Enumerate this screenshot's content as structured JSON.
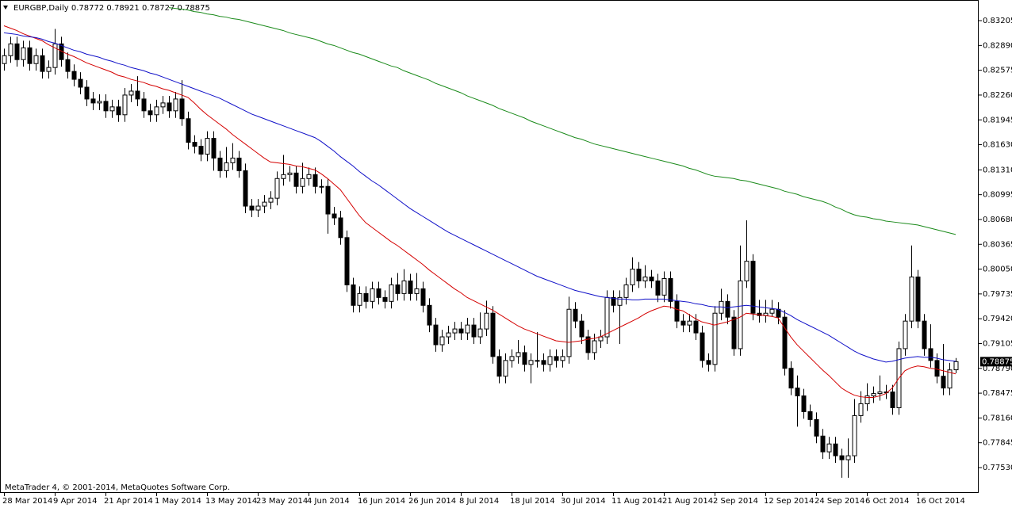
{
  "chart_data": {
    "type": "candlestick",
    "title": "EURGBP,Daily  0.78772 0.78921 0.78727 0.78875",
    "footer": "MetaTrader 4, © 2001-2014, MetaQuotes Software Corp.",
    "categories": [
      "28 Mar 2014",
      null,
      null,
      null,
      null,
      null,
      null,
      null,
      "9 Apr 2014",
      null,
      null,
      null,
      null,
      null,
      null,
      null,
      "21 Apr 2014",
      null,
      null,
      null,
      null,
      null,
      null,
      null,
      "1 May 2014",
      null,
      null,
      null,
      null,
      null,
      null,
      null,
      "13 May 2014",
      null,
      null,
      null,
      null,
      null,
      null,
      null,
      "23 May 2014",
      null,
      null,
      null,
      null,
      null,
      null,
      null,
      "4 Jun 2014",
      null,
      null,
      null,
      null,
      null,
      null,
      null,
      "16 Jun 2014",
      null,
      null,
      null,
      null,
      null,
      null,
      null,
      "26 Jun 2014",
      null,
      null,
      null,
      null,
      null,
      null,
      null,
      "8 Jul 2014",
      null,
      null,
      null,
      null,
      null,
      null,
      null,
      "18 Jul 2014",
      null,
      null,
      null,
      null,
      null,
      null,
      null,
      "30 Jul 2014",
      null,
      null,
      null,
      null,
      null,
      null,
      null,
      "11 Aug 2014",
      null,
      null,
      null,
      null,
      null,
      null,
      null,
      "21 Aug 2014",
      null,
      null,
      null,
      null,
      null,
      null,
      null,
      "2 Sep 2014",
      null,
      null,
      null,
      null,
      null,
      null,
      null,
      "12 Sep 2014",
      null,
      null,
      null,
      null,
      null,
      null,
      null,
      "24 Sep 2014",
      null,
      null,
      null,
      null,
      null,
      null,
      null,
      "6 Oct 2014",
      null,
      null,
      null,
      null,
      null,
      null,
      null,
      "16 Oct 2014",
      null,
      null,
      null,
      null,
      null,
      null
    ],
    "open": [
      0.8266,
      0.8276,
      0.8291,
      0.8271,
      0.8286,
      0.8266,
      0.8276,
      0.8256,
      0.8261,
      0.8291,
      0.8271,
      0.8256,
      0.8246,
      0.8236,
      0.8221,
      0.8216,
      0.8218,
      0.8206,
      0.8211,
      0.8201,
      0.8226,
      0.8231,
      0.8221,
      0.8206,
      0.8201,
      0.8211,
      0.8216,
      0.8206,
      0.8221,
      0.8196,
      0.8166,
      0.8161,
      0.8151,
      0.8171,
      0.8146,
      0.813,
      0.814,
      0.8146,
      0.813,
      0.8085,
      0.808,
      0.8085,
      0.809,
      0.8095,
      0.812,
      0.8125,
      0.8127,
      0.811,
      0.812,
      0.8125,
      0.811,
      0.811,
      0.8075,
      0.807,
      0.8045,
      0.7985,
      0.7959,
      0.7974,
      0.7964,
      0.798,
      0.7969,
      0.7964,
      0.7985,
      0.7974,
      0.799,
      0.7974,
      0.798,
      0.7959,
      0.7934,
      0.7909,
      0.7919,
      0.7924,
      0.7929,
      0.7924,
      0.7934,
      0.7919,
      0.7929,
      0.7949,
      0.7894,
      0.7869,
      0.7889,
      0.7894,
      0.7899,
      0.7884,
      0.7889,
      0.7889,
      0.7884,
      0.7894,
      0.7889,
      0.7894,
      0.7954,
      0.7939,
      0.7919,
      0.7899,
      0.7914,
      0.7919,
      0.7969,
      0.7959,
      0.7969,
      0.7985,
      0.8005,
      0.799,
      0.7995,
      0.799,
      0.7972,
      0.7993,
      0.7964,
      0.7939,
      0.7934,
      0.7939,
      0.7924,
      0.7889,
      0.7884,
      0.7949,
      0.7964,
      0.7944,
      0.7904,
      0.799,
      0.8015,
      0.7949,
      0.7946,
      0.7949,
      0.7954,
      0.7944,
      0.7879,
      0.7854,
      0.7844,
      0.7824,
      0.7814,
      0.7793,
      0.7773,
      0.7783,
      0.7768,
      0.7763,
      0.7768,
      0.7819,
      0.7834,
      0.7844,
      0.7847,
      0.7849,
      0.7849,
      0.7829,
      0.7904,
      0.7939,
      0.7995,
      0.7939,
      0.7904,
      0.7889,
      0.7869,
      0.7854,
      0.78772
    ],
    "high": [
      0.8285,
      0.83,
      0.83,
      0.8295,
      0.8295,
      0.8285,
      0.8285,
      0.827,
      0.831,
      0.83,
      0.828,
      0.8265,
      0.8255,
      0.8245,
      0.823,
      0.8227,
      0.8227,
      0.822,
      0.822,
      0.8235,
      0.824,
      0.825,
      0.823,
      0.8215,
      0.822,
      0.8225,
      0.8225,
      0.823,
      0.8245,
      0.8205,
      0.8175,
      0.817,
      0.818,
      0.818,
      0.8155,
      0.816,
      0.8165,
      0.8155,
      0.8139,
      0.8094,
      0.8094,
      0.8099,
      0.8104,
      0.8129,
      0.815,
      0.8136,
      0.8136,
      0.814,
      0.8134,
      0.8134,
      0.8119,
      0.8119,
      0.8084,
      0.8079,
      0.8054,
      0.7994,
      0.7983,
      0.7983,
      0.7989,
      0.7989,
      0.7978,
      0.7994,
      0.8,
      0.8005,
      0.7999,
      0.8,
      0.7989,
      0.7968,
      0.7943,
      0.7928,
      0.7933,
      0.7938,
      0.7938,
      0.7943,
      0.7943,
      0.795,
      0.7965,
      0.7958,
      0.7903,
      0.7898,
      0.7903,
      0.7915,
      0.7908,
      0.7898,
      0.7925,
      0.7898,
      0.7903,
      0.7903,
      0.7903,
      0.797,
      0.7963,
      0.7948,
      0.7928,
      0.7923,
      0.7928,
      0.7978,
      0.7978,
      0.7978,
      0.7994,
      0.802,
      0.8014,
      0.801,
      0.8004,
      0.7999,
      0.8002,
      0.8002,
      0.7973,
      0.7948,
      0.7948,
      0.7948,
      0.7933,
      0.7898,
      0.7958,
      0.798,
      0.7973,
      0.7953,
      0.8035,
      0.8067,
      0.8024,
      0.7966,
      0.7966,
      0.7966,
      0.7963,
      0.7953,
      0.7888,
      0.787,
      0.7853,
      0.7833,
      0.7823,
      0.7802,
      0.7792,
      0.7792,
      0.7777,
      0.779,
      0.784,
      0.785,
      0.786,
      0.7856,
      0.787,
      0.7858,
      0.7858,
      0.7913,
      0.7948,
      0.8035,
      0.8004,
      0.7948,
      0.7935,
      0.7898,
      0.791,
      0.7886,
      0.78921
    ],
    "low": [
      0.8257,
      0.8267,
      0.8262,
      0.8262,
      0.8257,
      0.8257,
      0.8247,
      0.8247,
      0.8252,
      0.8262,
      0.8247,
      0.8237,
      0.8227,
      0.8212,
      0.8207,
      0.8207,
      0.8197,
      0.8197,
      0.8192,
      0.8192,
      0.8217,
      0.8212,
      0.8197,
      0.8192,
      0.8192,
      0.8202,
      0.8197,
      0.8197,
      0.8187,
      0.8157,
      0.8152,
      0.8142,
      0.8142,
      0.813,
      0.8121,
      0.8121,
      0.8131,
      0.8121,
      0.8076,
      0.8071,
      0.8071,
      0.8076,
      0.8081,
      0.8086,
      0.8111,
      0.8116,
      0.8101,
      0.8101,
      0.8111,
      0.8101,
      0.8101,
      0.805,
      0.8061,
      0.8036,
      0.7976,
      0.795,
      0.795,
      0.7955,
      0.7955,
      0.796,
      0.7955,
      0.7955,
      0.7965,
      0.7965,
      0.7965,
      0.7965,
      0.795,
      0.7925,
      0.79,
      0.79,
      0.791,
      0.7915,
      0.7915,
      0.7915,
      0.791,
      0.791,
      0.792,
      0.7885,
      0.786,
      0.786,
      0.788,
      0.7885,
      0.7875,
      0.786,
      0.788,
      0.7875,
      0.7875,
      0.788,
      0.788,
      0.7885,
      0.793,
      0.791,
      0.789,
      0.789,
      0.7905,
      0.791,
      0.795,
      0.791,
      0.796,
      0.7976,
      0.7981,
      0.7981,
      0.7981,
      0.7963,
      0.7963,
      0.7955,
      0.793,
      0.7925,
      0.7925,
      0.7915,
      0.788,
      0.7875,
      0.7875,
      0.794,
      0.7935,
      0.7895,
      0.7895,
      0.7981,
      0.794,
      0.7937,
      0.7937,
      0.7945,
      0.7935,
      0.787,
      0.7845,
      0.7805,
      0.7815,
      0.7805,
      0.7784,
      0.7764,
      0.7764,
      0.7759,
      0.774,
      0.774,
      0.7759,
      0.781,
      0.7825,
      0.7835,
      0.7838,
      0.784,
      0.782,
      0.782,
      0.7895,
      0.793,
      0.793,
      0.7895,
      0.788,
      0.786,
      0.7845,
      0.7845,
      0.78727
    ],
    "close": [
      0.8276,
      0.8291,
      0.8271,
      0.8286,
      0.8266,
      0.8276,
      0.8256,
      0.8261,
      0.8291,
      0.8271,
      0.8256,
      0.8246,
      0.8236,
      0.8221,
      0.8216,
      0.8218,
      0.8206,
      0.8211,
      0.8201,
      0.8226,
      0.8231,
      0.8221,
      0.8206,
      0.8201,
      0.8211,
      0.8216,
      0.8206,
      0.8221,
      0.8196,
      0.8166,
      0.8161,
      0.8151,
      0.8171,
      0.8146,
      0.813,
      0.814,
      0.8146,
      0.813,
      0.8085,
      0.808,
      0.8085,
      0.809,
      0.8095,
      0.812,
      0.8125,
      0.8127,
      0.811,
      0.812,
      0.8125,
      0.811,
      0.811,
      0.8075,
      0.807,
      0.8045,
      0.7985,
      0.7959,
      0.7974,
      0.7964,
      0.798,
      0.7969,
      0.7964,
      0.7985,
      0.7974,
      0.799,
      0.7974,
      0.798,
      0.7959,
      0.7934,
      0.7909,
      0.7919,
      0.7924,
      0.7929,
      0.7924,
      0.7934,
      0.7919,
      0.7929,
      0.7949,
      0.7894,
      0.7869,
      0.7889,
      0.7894,
      0.7899,
      0.7884,
      0.7889,
      0.7889,
      0.7884,
      0.7894,
      0.7889,
      0.7894,
      0.7954,
      0.7939,
      0.7919,
      0.7899,
      0.7914,
      0.7919,
      0.7969,
      0.7959,
      0.7969,
      0.7985,
      0.8005,
      0.799,
      0.7995,
      0.799,
      0.7972,
      0.7993,
      0.7964,
      0.7939,
      0.7934,
      0.7939,
      0.7924,
      0.7889,
      0.7884,
      0.7949,
      0.7964,
      0.7944,
      0.7904,
      0.799,
      0.8015,
      0.7949,
      0.7946,
      0.7949,
      0.7954,
      0.7944,
      0.7879,
      0.7854,
      0.7844,
      0.7824,
      0.7814,
      0.7793,
      0.7773,
      0.7783,
      0.7768,
      0.7763,
      0.7768,
      0.7819,
      0.7834,
      0.7844,
      0.7847,
      0.7849,
      0.7849,
      0.7829,
      0.7904,
      0.7939,
      0.7995,
      0.7939,
      0.7904,
      0.7889,
      0.7869,
      0.7854,
      0.7877,
      0.78875
    ],
    "lines": [
      {
        "color": "#d40000",
        "values": [
          0.8314,
          0.8311,
          0.8308,
          0.8304,
          0.8301,
          0.8298,
          0.8295,
          0.829,
          0.8286,
          0.8282,
          0.8278,
          0.8275,
          0.8271,
          0.8267,
          0.8264,
          0.8261,
          0.8258,
          0.8255,
          0.8251,
          0.8249,
          0.8246,
          0.8244,
          0.8242,
          0.8239,
          0.8237,
          0.8234,
          0.8232,
          0.8229,
          0.8226,
          0.8223,
          0.8216,
          0.8208,
          0.8201,
          0.8195,
          0.8189,
          0.8183,
          0.8176,
          0.817,
          0.8164,
          0.8158,
          0.8152,
          0.8146,
          0.8141,
          0.814,
          0.8139,
          0.8138,
          0.8136,
          0.8135,
          0.8133,
          0.8131,
          0.8126,
          0.812,
          0.8113,
          0.8106,
          0.8095,
          0.8084,
          0.8073,
          0.8064,
          0.8058,
          0.8052,
          0.8046,
          0.804,
          0.8035,
          0.8029,
          0.8023,
          0.8017,
          0.8011,
          0.8004,
          0.7998,
          0.7992,
          0.7986,
          0.798,
          0.7975,
          0.7969,
          0.7965,
          0.7961,
          0.7957,
          0.7953,
          0.7948,
          0.7943,
          0.7938,
          0.7933,
          0.7929,
          0.7926,
          0.7923,
          0.792,
          0.7917,
          0.7914,
          0.7913,
          0.7912,
          0.7913,
          0.7914,
          0.7916,
          0.7917,
          0.7919,
          0.7923,
          0.7927,
          0.7931,
          0.7935,
          0.7939,
          0.7943,
          0.7948,
          0.7952,
          0.7955,
          0.7958,
          0.7957,
          0.7954,
          0.7952,
          0.7947,
          0.7942,
          0.7938,
          0.7936,
          0.7934,
          0.7936,
          0.7938,
          0.7941,
          0.7944,
          0.7949,
          0.7948,
          0.7947,
          0.7946,
          0.7945,
          0.7943,
          0.7931,
          0.7919,
          0.7909,
          0.7901,
          0.7893,
          0.7885,
          0.7877,
          0.787,
          0.7862,
          0.7854,
          0.7849,
          0.7845,
          0.7843,
          0.7842,
          0.7842,
          0.7844,
          0.7847,
          0.7854,
          0.7866,
          0.7876,
          0.788,
          0.7882,
          0.7881,
          0.7879,
          0.7878,
          0.7876,
          0.7874,
          0.7872
        ]
      },
      {
        "color": "#1010c8",
        "values": [
          0.8305,
          0.8304,
          0.8303,
          0.8301,
          0.83,
          0.8299,
          0.8297,
          0.8294,
          0.8292,
          0.8289,
          0.8286,
          0.8283,
          0.8281,
          0.8278,
          0.8276,
          0.8274,
          0.8271,
          0.8269,
          0.8266,
          0.8264,
          0.8261,
          0.8259,
          0.8257,
          0.8254,
          0.8252,
          0.8249,
          0.8246,
          0.8243,
          0.824,
          0.8237,
          0.8234,
          0.8231,
          0.8228,
          0.8225,
          0.8222,
          0.8218,
          0.8214,
          0.821,
          0.8206,
          0.8202,
          0.8199,
          0.8196,
          0.8193,
          0.819,
          0.8187,
          0.8184,
          0.8181,
          0.8178,
          0.8175,
          0.8172,
          0.8167,
          0.8161,
          0.8155,
          0.8148,
          0.8142,
          0.8136,
          0.8129,
          0.8123,
          0.8117,
          0.8112,
          0.8106,
          0.81,
          0.8094,
          0.8088,
          0.8082,
          0.8077,
          0.8072,
          0.8067,
          0.8062,
          0.8057,
          0.8052,
          0.8048,
          0.8044,
          0.804,
          0.8036,
          0.8032,
          0.8028,
          0.8024,
          0.802,
          0.8016,
          0.8012,
          0.8008,
          0.8004,
          0.8,
          0.7996,
          0.7993,
          0.799,
          0.7987,
          0.7984,
          0.7981,
          0.7978,
          0.7976,
          0.7974,
          0.7972,
          0.797,
          0.7969,
          0.7968,
          0.7967,
          0.7967,
          0.7966,
          0.7966,
          0.7967,
          0.7967,
          0.7967,
          0.7967,
          0.7966,
          0.7965,
          0.7964,
          0.7963,
          0.7961,
          0.796,
          0.7958,
          0.7957,
          0.7957,
          0.7956,
          0.7957,
          0.7958,
          0.7959,
          0.7958,
          0.7957,
          0.7956,
          0.7955,
          0.7954,
          0.795,
          0.7946,
          0.7941,
          0.7937,
          0.7933,
          0.7929,
          0.7925,
          0.7921,
          0.7916,
          0.7911,
          0.7906,
          0.7901,
          0.7897,
          0.7894,
          0.7891,
          0.7889,
          0.7887,
          0.7888,
          0.789,
          0.7892,
          0.7893,
          0.7894,
          0.7893,
          0.7893,
          0.7892,
          0.789,
          0.7889,
          0.7888
        ]
      },
      {
        "color": "#1a8a1a",
        "values": [
          null,
          null,
          null,
          null,
          null,
          null,
          null,
          null,
          null,
          null,
          null,
          null,
          null,
          null,
          null,
          null,
          null,
          null,
          null,
          null,
          null,
          null,
          null,
          null,
          null,
          null,
          0.8337,
          0.8336,
          0.8335,
          0.8334,
          0.8332,
          0.8331,
          0.8329,
          0.8328,
          0.8326,
          0.8325,
          0.8323,
          0.8322,
          0.832,
          0.8318,
          0.8316,
          0.8314,
          0.8312,
          0.831,
          0.8308,
          0.8305,
          0.8303,
          0.8301,
          0.8299,
          0.8297,
          0.8294,
          0.8291,
          0.8289,
          0.8286,
          0.8283,
          0.828,
          0.8278,
          0.8275,
          0.8272,
          0.8269,
          0.8266,
          0.8263,
          0.8261,
          0.8257,
          0.8254,
          0.8251,
          0.8248,
          0.8245,
          0.8241,
          0.8238,
          0.8235,
          0.8232,
          0.8229,
          0.8225,
          0.8222,
          0.8219,
          0.8216,
          0.8213,
          0.8209,
          0.8206,
          0.8203,
          0.82,
          0.8197,
          0.8193,
          0.819,
          0.8187,
          0.8184,
          0.8181,
          0.8178,
          0.8175,
          0.8172,
          0.817,
          0.8167,
          0.8164,
          0.8162,
          0.816,
          0.8158,
          0.8156,
          0.8154,
          0.8152,
          0.815,
          0.8148,
          0.8146,
          0.8144,
          0.8142,
          0.814,
          0.8138,
          0.8136,
          0.8133,
          0.8131,
          0.8128,
          0.8125,
          0.8123,
          0.8122,
          0.8121,
          0.812,
          0.8118,
          0.8117,
          0.8115,
          0.8113,
          0.8111,
          0.8109,
          0.8107,
          0.8104,
          0.8102,
          0.81,
          0.8097,
          0.8095,
          0.8093,
          0.8091,
          0.8088,
          0.8084,
          0.8081,
          0.8077,
          0.8074,
          0.8072,
          0.8071,
          0.8069,
          0.8068,
          0.8066,
          0.8065,
          0.8064,
          0.8063,
          0.8062,
          0.8061,
          0.8059,
          0.8057,
          0.8055,
          0.8053,
          0.8051,
          0.8049
        ]
      }
    ],
    "ylim": [
      0.77208,
      0.83467
    ],
    "yticks": [
      0.83205,
      {
        "value": 0.8289,
        "label": "0.82890"
      },
      0.82575,
      {
        "value": 0.8226,
        "label": "0.82260"
      },
      0.81945,
      {
        "value": 0.8163,
        "label": "0.81630"
      },
      {
        "value": 0.8131,
        "label": "0.81310"
      },
      0.80995,
      {
        "value": 0.8068,
        "label": "0.80680"
      },
      0.80365,
      {
        "value": 0.8005,
        "label": "0.80050"
      },
      0.79735,
      {
        "value": 0.7942,
        "label": "0.79420"
      },
      0.79105,
      {
        "value": 0.7879,
        "label": "0.78790"
      },
      0.78475,
      {
        "value": 0.7816,
        "label": "0.78160"
      },
      0.77845,
      {
        "value": 0.7753,
        "label": "0.77530"
      }
    ],
    "up_color": "#ffffff",
    "down_color": "#000000",
    "grid": false
  }
}
